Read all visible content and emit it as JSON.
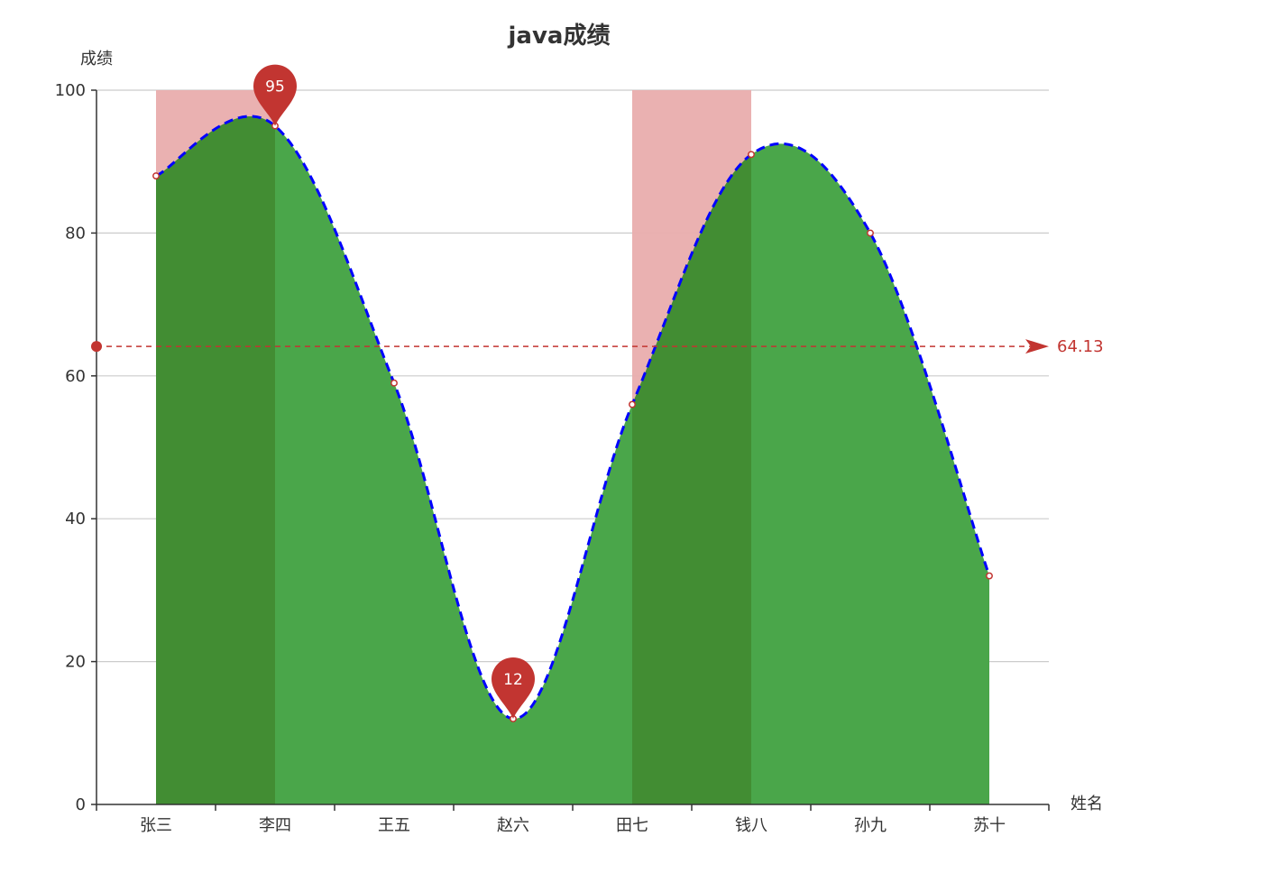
{
  "chart_data": {
    "type": "area",
    "title": "java成绩",
    "xlabel": "姓名",
    "ylabel": "成绩",
    "categories": [
      "张三",
      "李四",
      "王五",
      "赵六",
      "田七",
      "钱八",
      "孙九",
      "苏十"
    ],
    "series": [
      {
        "values": [
          88,
          95,
          59,
          12,
          56,
          91,
          80,
          32
        ],
        "line_style": "dashed",
        "smooth": true
      }
    ],
    "ylim": [
      0,
      100
    ],
    "yticks": [
      0,
      20,
      40,
      60,
      80,
      100
    ],
    "grid": true,
    "mark_points": [
      {
        "category": "李四",
        "value": 95,
        "label": "95",
        "kind": "max"
      },
      {
        "category": "赵六",
        "value": 12,
        "label": "12",
        "kind": "min"
      }
    ],
    "mark_line": {
      "value": 64.13,
      "label": "64.13",
      "kind": "average"
    },
    "mark_areas": [
      {
        "from": "张三",
        "to": "李四"
      },
      {
        "from": "田七",
        "to": "钱八"
      }
    ]
  },
  "colors": {
    "area_fill": "#4aa64a",
    "area_fill_dark": "#428d33",
    "line": "#0000ff",
    "marker": "#c23531",
    "mark_area": "#e9adad",
    "grid": "#cccccc",
    "axis": "#333333",
    "text": "#333333"
  }
}
